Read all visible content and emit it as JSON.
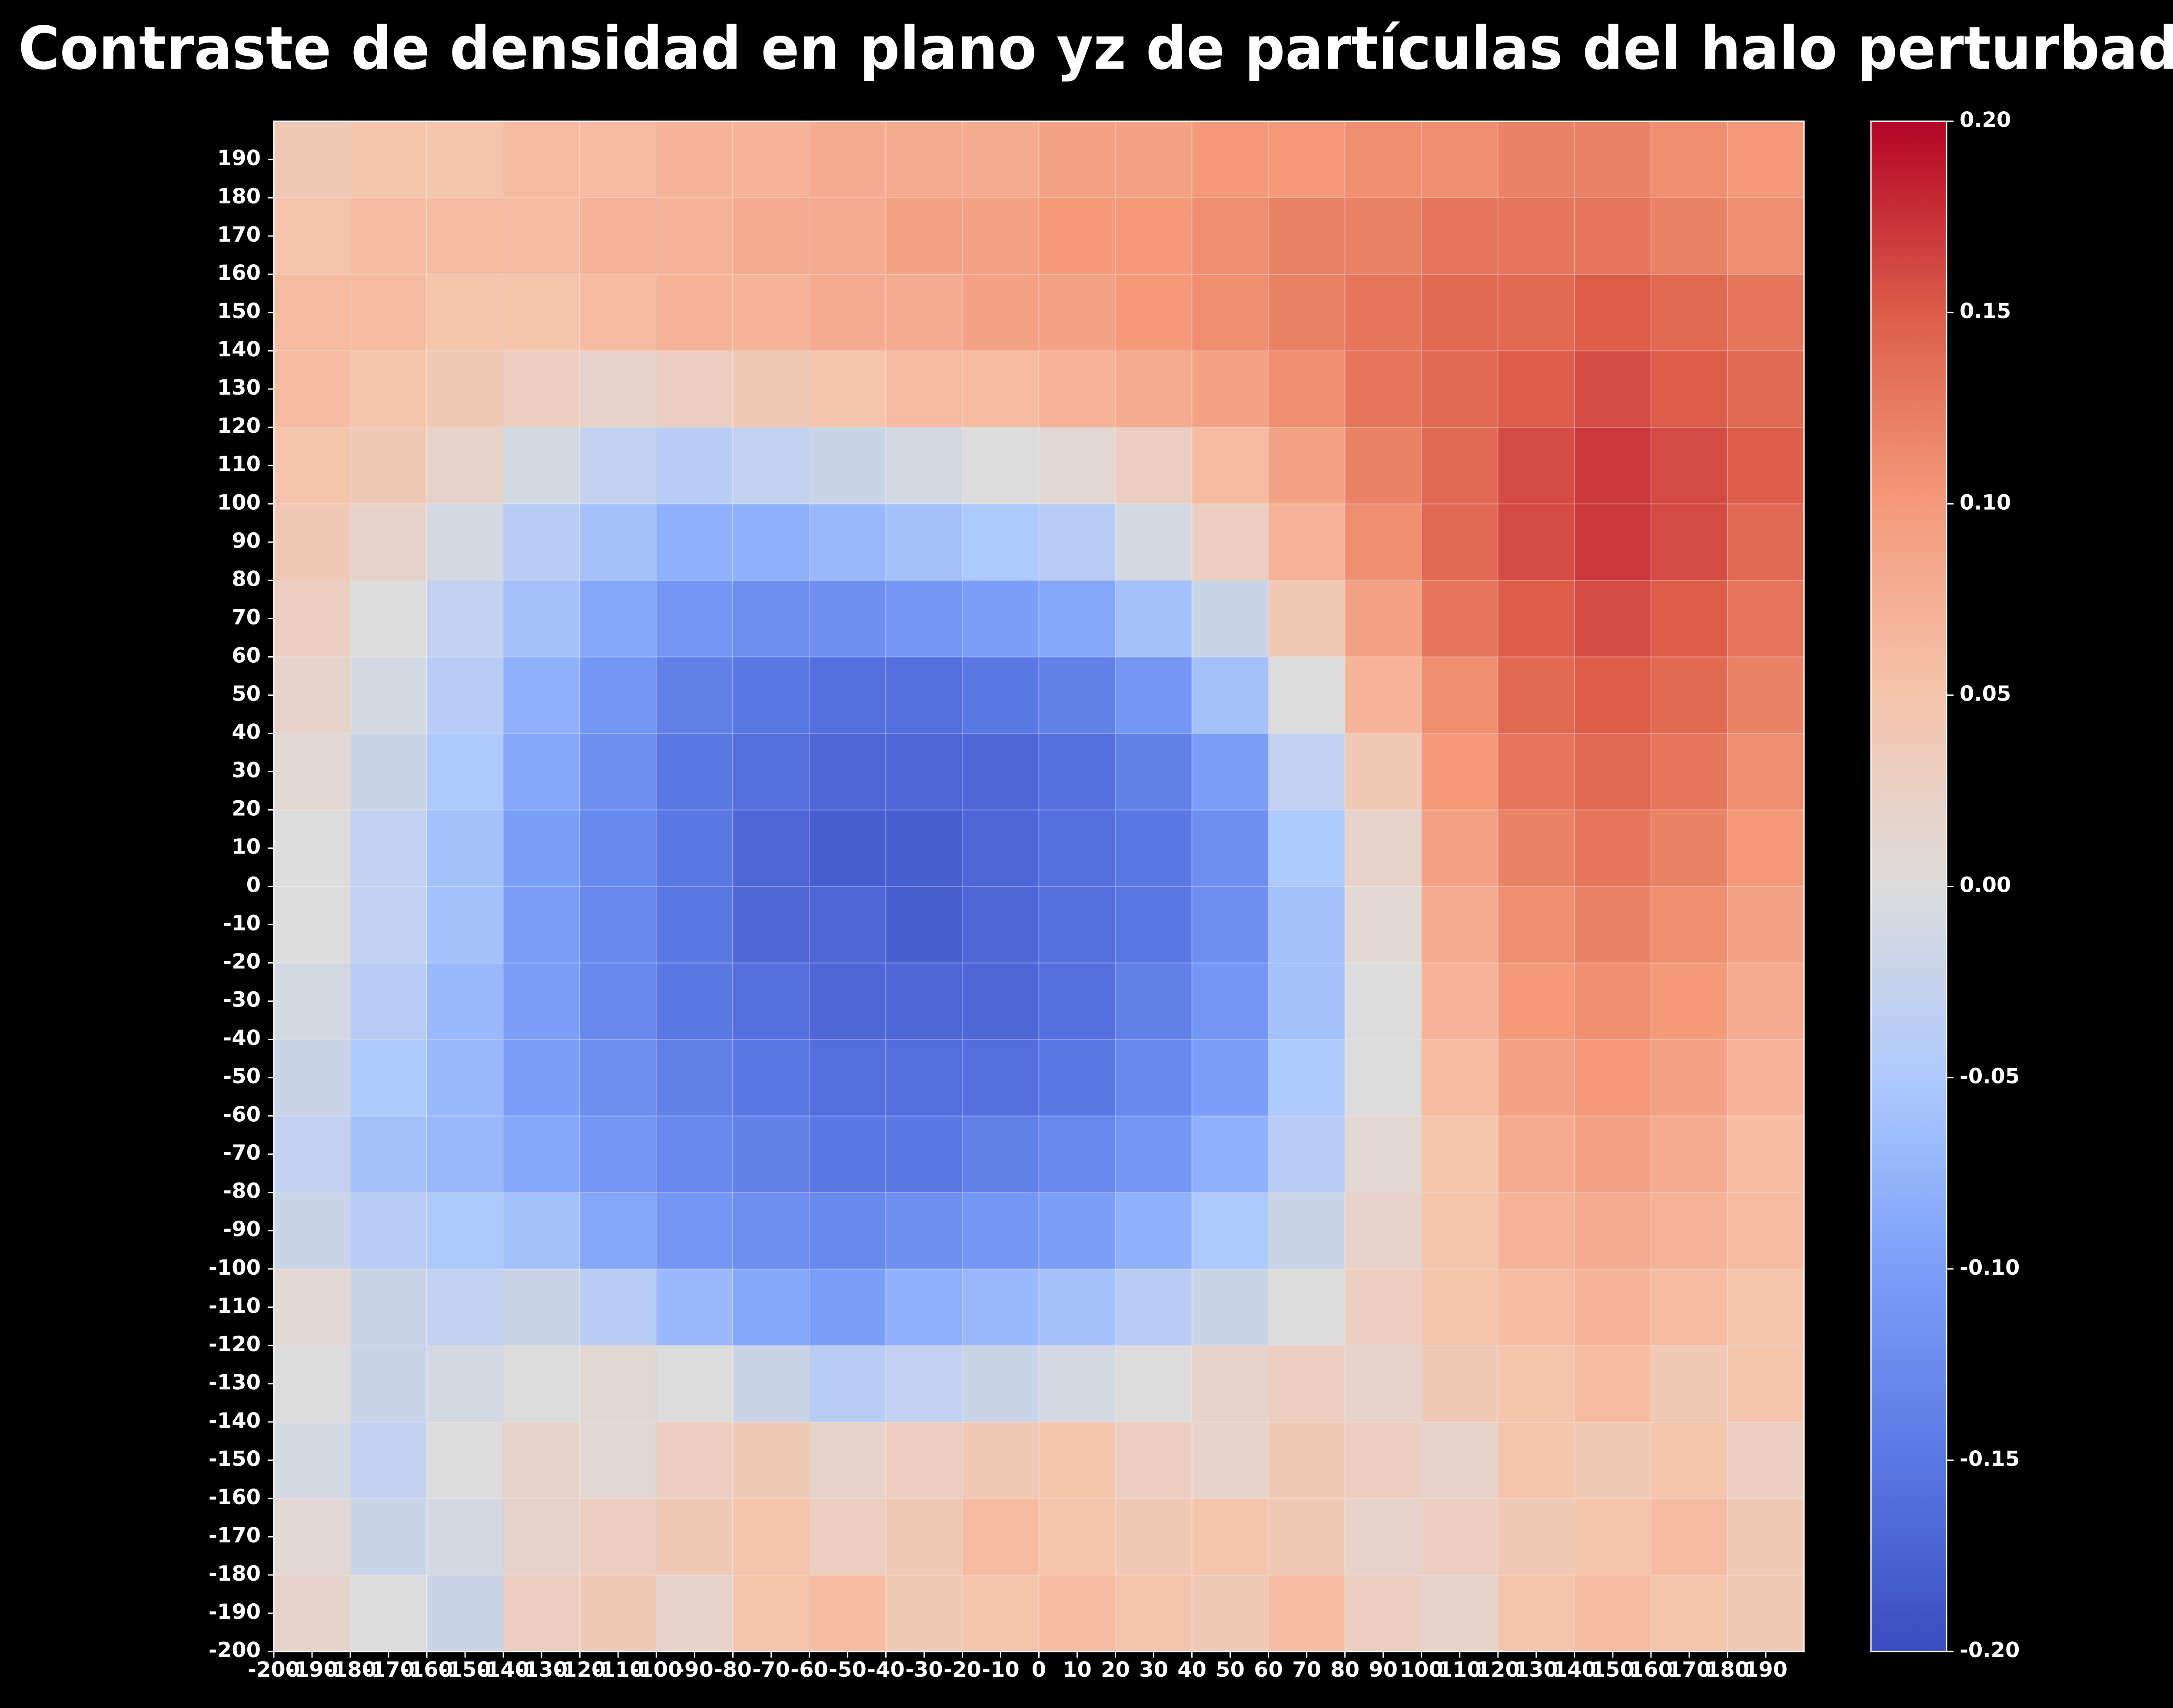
{
  "chart_data": {
    "type": "heatmap",
    "title": "Contraste de densidad en plano yz de partículas del halo perturbado",
    "x": [
      -190,
      -170,
      -150,
      -130,
      -110,
      -90,
      -70,
      -50,
      -30,
      -10,
      10,
      30,
      50,
      70,
      90,
      110,
      130,
      150,
      170,
      190
    ],
    "y": [
      -190,
      -170,
      -150,
      -130,
      -110,
      -90,
      -70,
      -50,
      -30,
      -10,
      10,
      30,
      50,
      70,
      90,
      110,
      130,
      150,
      170,
      190
    ],
    "values": [
      [
        0.02,
        0.0,
        -0.02,
        0.03,
        0.04,
        0.02,
        0.05,
        0.06,
        0.04,
        0.05,
        0.06,
        0.05,
        0.04,
        0.06,
        0.03,
        0.02,
        0.05,
        0.06,
        0.05,
        0.04
      ],
      [
        0.01,
        -0.02,
        -0.01,
        0.02,
        0.03,
        0.04,
        0.05,
        0.03,
        0.04,
        0.06,
        0.05,
        0.04,
        0.05,
        0.04,
        0.02,
        0.03,
        0.04,
        0.05,
        0.06,
        0.04
      ],
      [
        -0.01,
        -0.03,
        0.0,
        0.02,
        0.01,
        0.03,
        0.04,
        0.02,
        0.03,
        0.04,
        0.05,
        0.03,
        0.02,
        0.04,
        0.03,
        0.02,
        0.05,
        0.04,
        0.05,
        0.03
      ],
      [
        0.0,
        -0.02,
        -0.01,
        0.0,
        0.01,
        0.0,
        -0.02,
        -0.04,
        -0.03,
        -0.02,
        -0.01,
        0.0,
        0.02,
        0.03,
        0.02,
        0.04,
        0.05,
        0.06,
        0.04,
        0.05
      ],
      [
        0.01,
        -0.02,
        -0.03,
        -0.02,
        -0.04,
        -0.07,
        -0.09,
        -0.1,
        -0.08,
        -0.07,
        -0.06,
        -0.04,
        -0.02,
        0.0,
        0.03,
        0.05,
        0.06,
        0.07,
        0.06,
        0.05
      ],
      [
        -0.02,
        -0.04,
        -0.05,
        -0.06,
        -0.09,
        -0.11,
        -0.12,
        -0.13,
        -0.12,
        -0.11,
        -0.1,
        -0.08,
        -0.05,
        -0.02,
        0.02,
        0.05,
        0.07,
        0.08,
        0.07,
        0.06
      ],
      [
        -0.03,
        -0.06,
        -0.07,
        -0.09,
        -0.11,
        -0.13,
        -0.14,
        -0.15,
        -0.15,
        -0.14,
        -0.13,
        -0.11,
        -0.08,
        -0.04,
        0.01,
        0.05,
        0.08,
        0.09,
        0.08,
        0.06
      ],
      [
        -0.02,
        -0.05,
        -0.07,
        -0.1,
        -0.12,
        -0.14,
        -0.15,
        -0.16,
        -0.16,
        -0.16,
        -0.15,
        -0.13,
        -0.1,
        -0.05,
        0.0,
        0.06,
        0.09,
        0.1,
        0.09,
        0.07
      ],
      [
        -0.01,
        -0.04,
        -0.07,
        -0.1,
        -0.13,
        -0.15,
        -0.16,
        -0.17,
        -0.17,
        -0.17,
        -0.16,
        -0.14,
        -0.11,
        -0.06,
        0.0,
        0.07,
        0.1,
        0.11,
        0.1,
        0.08
      ],
      [
        0.0,
        -0.03,
        -0.06,
        -0.1,
        -0.13,
        -0.15,
        -0.17,
        -0.17,
        -0.18,
        -0.17,
        -0.16,
        -0.15,
        -0.12,
        -0.06,
        0.01,
        0.08,
        0.11,
        0.12,
        0.11,
        0.09
      ],
      [
        0.0,
        -0.03,
        -0.06,
        -0.1,
        -0.13,
        -0.15,
        -0.17,
        -0.18,
        -0.18,
        -0.17,
        -0.16,
        -0.15,
        -0.12,
        -0.05,
        0.02,
        0.09,
        0.12,
        0.13,
        0.12,
        0.1
      ],
      [
        0.01,
        -0.02,
        -0.05,
        -0.09,
        -0.12,
        -0.15,
        -0.16,
        -0.17,
        -0.17,
        -0.17,
        -0.16,
        -0.14,
        -0.1,
        -0.03,
        0.04,
        0.1,
        0.13,
        0.14,
        0.13,
        0.11
      ],
      [
        0.02,
        -0.01,
        -0.04,
        -0.08,
        -0.11,
        -0.14,
        -0.15,
        -0.16,
        -0.16,
        -0.15,
        -0.14,
        -0.11,
        -0.06,
        0.0,
        0.07,
        0.11,
        0.14,
        0.15,
        0.14,
        0.12
      ],
      [
        0.03,
        0.0,
        -0.03,
        -0.06,
        -0.09,
        -0.11,
        -0.12,
        -0.12,
        -0.11,
        -0.1,
        -0.09,
        -0.06,
        -0.02,
        0.04,
        0.09,
        0.13,
        0.15,
        0.16,
        0.15,
        0.13
      ],
      [
        0.04,
        0.02,
        -0.01,
        -0.04,
        -0.06,
        -0.08,
        -0.08,
        -0.07,
        -0.06,
        -0.05,
        -0.04,
        -0.01,
        0.03,
        0.07,
        0.11,
        0.14,
        0.16,
        0.17,
        0.16,
        0.14
      ],
      [
        0.05,
        0.04,
        0.02,
        -0.01,
        -0.03,
        -0.04,
        -0.03,
        -0.02,
        -0.01,
        0.0,
        0.01,
        0.03,
        0.06,
        0.09,
        0.12,
        0.14,
        0.16,
        0.17,
        0.16,
        0.15
      ],
      [
        0.06,
        0.05,
        0.04,
        0.03,
        0.02,
        0.03,
        0.04,
        0.05,
        0.06,
        0.06,
        0.07,
        0.08,
        0.09,
        0.11,
        0.13,
        0.14,
        0.15,
        0.16,
        0.15,
        0.14
      ],
      [
        0.06,
        0.06,
        0.05,
        0.05,
        0.06,
        0.07,
        0.07,
        0.08,
        0.08,
        0.09,
        0.09,
        0.1,
        0.11,
        0.12,
        0.13,
        0.14,
        0.14,
        0.15,
        0.14,
        0.13
      ],
      [
        0.05,
        0.06,
        0.06,
        0.06,
        0.07,
        0.07,
        0.08,
        0.08,
        0.09,
        0.09,
        0.1,
        0.1,
        0.11,
        0.12,
        0.12,
        0.13,
        0.13,
        0.13,
        0.12,
        0.11
      ],
      [
        0.04,
        0.05,
        0.05,
        0.06,
        0.06,
        0.07,
        0.07,
        0.08,
        0.08,
        0.08,
        0.09,
        0.09,
        0.1,
        0.1,
        0.11,
        0.11,
        0.12,
        0.12,
        0.11,
        0.1
      ]
    ],
    "xlim": [
      -200,
      200
    ],
    "ylim": [
      -200,
      200
    ],
    "xticks": [
      -200,
      -190,
      -180,
      -170,
      -160,
      -150,
      -140,
      -130,
      -120,
      -110,
      -100,
      -90,
      -80,
      -70,
      -60,
      -50,
      -40,
      -30,
      -20,
      -10,
      0,
      10,
      20,
      30,
      40,
      50,
      60,
      70,
      80,
      90,
      100,
      110,
      120,
      130,
      140,
      150,
      160,
      170,
      180,
      190
    ],
    "yticks": [
      -200,
      -190,
      -180,
      -170,
      -160,
      -150,
      -140,
      -130,
      -120,
      -110,
      -100,
      -90,
      -80,
      -70,
      -60,
      -50,
      -40,
      -30,
      -20,
      -10,
      0,
      10,
      20,
      30,
      40,
      50,
      60,
      70,
      80,
      90,
      100,
      110,
      120,
      130,
      140,
      150,
      160,
      170,
      180,
      190
    ],
    "clim": [
      -0.2,
      0.2
    ],
    "colormap": [
      "#3b4cc0",
      "#5a78e4",
      "#7b9ff9",
      "#aec9fc",
      "#dddcdc",
      "#f5c4ac",
      "#f49a7b",
      "#dc5d4a",
      "#b40426"
    ],
    "colorbar_ticks": [
      {
        "value": 0.2,
        "label": "0.20"
      },
      {
        "value": 0.15,
        "label": "0.15"
      },
      {
        "value": 0.1,
        "label": "0.10"
      },
      {
        "value": 0.05,
        "label": "0.05"
      },
      {
        "value": 0,
        "label": "0.00"
      },
      {
        "value": -0.05,
        "label": "-0.05"
      },
      {
        "value": -0.1,
        "label": "-0.10"
      },
      {
        "value": -0.15,
        "label": "-0.15"
      },
      {
        "value": -0.2,
        "label": "-0.20"
      }
    ]
  }
}
